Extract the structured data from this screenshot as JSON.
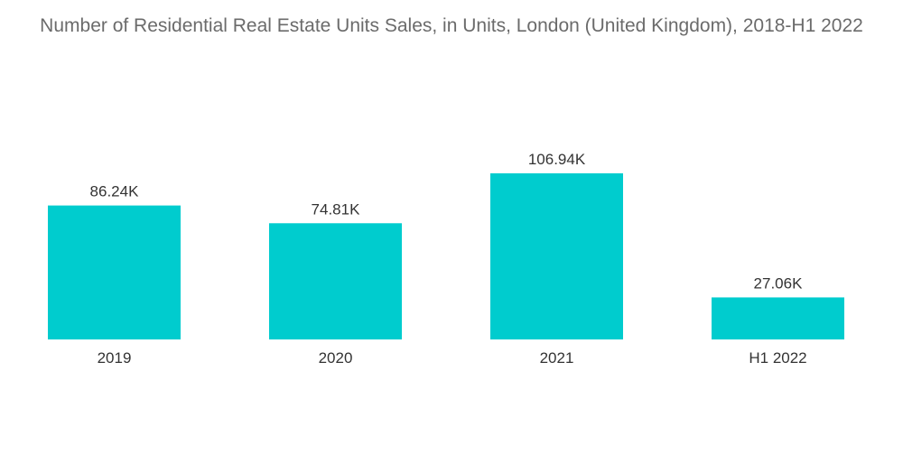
{
  "chart_data": {
    "type": "bar",
    "title": "Number of Residential Real Estate Units Sales, in Units, London (United Kingdom), 2018-H1 2022",
    "categories": [
      "2019",
      "2020",
      "2021",
      "H1 2022"
    ],
    "values": [
      86.24,
      74.81,
      106.94,
      27.06
    ],
    "data_labels": [
      "86.24K",
      "74.81K",
      "106.94K",
      "27.06K"
    ],
    "unit": "K",
    "xlabel": "",
    "ylabel": "",
    "ylim": [
      0,
      106.94
    ],
    "grid": false,
    "bar_color": "#00ccce"
  }
}
